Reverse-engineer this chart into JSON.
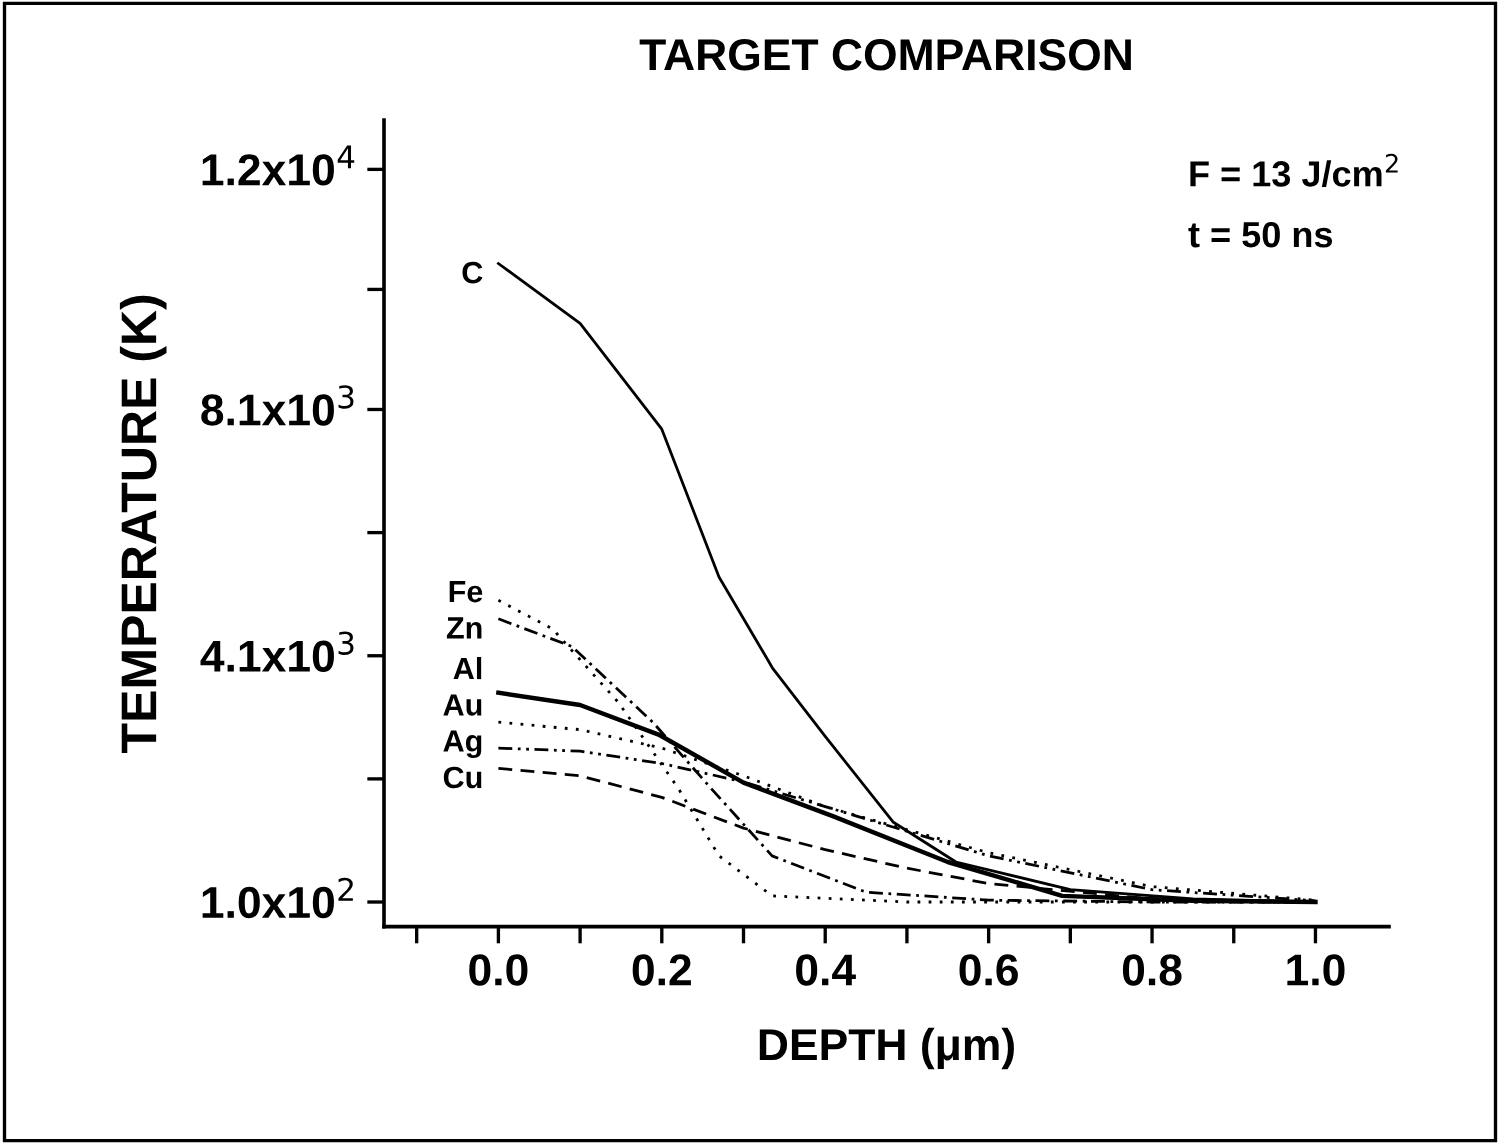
{
  "chart_data": {
    "type": "line",
    "title": "TARGET COMPARISON",
    "xlabel": "DEPTH (μm)",
    "ylabel": "TEMPERATURE (K)",
    "annotations": [
      "F = 13 J/cm$^{2}$",
      "t = 50 ns"
    ],
    "xlim": [
      -0.14,
      1.09
    ],
    "ylim": [
      -300,
      12800
    ],
    "xticks": [
      {
        "value": -0.1,
        "label": null
      },
      "0.0",
      {
        "value": 0.1,
        "label": null
      },
      0.2,
      {
        "value": 0.3,
        "label": null
      },
      0.4,
      {
        "value": 0.5,
        "label": null
      },
      0.6,
      {
        "value": 0.7,
        "label": null
      },
      0.8,
      {
        "value": 0.9,
        "label": null
      },
      {
        "value": 1.0,
        "label": "1.0"
      }
    ],
    "yticks": [
      {
        "value": 100,
        "label": "1.0x10$^{2}$"
      },
      {
        "value": 2100,
        "label": null
      },
      {
        "value": 4100,
        "label": "4.1x10$^{3}$"
      },
      {
        "value": 6100,
        "label": null
      },
      {
        "value": 8100,
        "label": "8.1x10$^{3}$"
      },
      {
        "value": 10050,
        "label": null
      },
      {
        "value": 12000,
        "label": "1.2x10$^{4}$"
      }
    ],
    "grid": false,
    "legend": false,
    "marker": "none",
    "series": [
      {
        "name": "C",
        "color": "#000000",
        "line_style": "solid",
        "x": [
          0,
          0.1,
          0.2,
          0.27,
          0.336,
          0.4,
          0.483,
          0.56,
          0.7,
          0.85,
          1.0
        ],
        "values": [
          10470,
          9500,
          7780,
          5380,
          3890,
          2790,
          1400,
          750,
          300,
          150,
          100
        ]
      },
      {
        "name": "Fe",
        "color": "#000000",
        "line_style": "dotted",
        "x": [
          0,
          0.066,
          0.147,
          0.22,
          0.27,
          0.335,
          0.5,
          0.7,
          1.0
        ],
        "values": [
          5000,
          4540,
          3340,
          1950,
          850,
          200,
          100,
          100,
          100
        ]
      },
      {
        "name": "Zn",
        "color": "#000000",
        "line_style": "dashdot",
        "x": [
          0,
          0.09,
          0.189,
          0.26,
          0.335,
          0.45,
          0.6,
          0.8,
          1.0
        ],
        "values": [
          4700,
          4250,
          3020,
          1950,
          850,
          260,
          130,
          100,
          100
        ]
      },
      {
        "name": "Al",
        "color": "#000000",
        "line_style": "solid",
        "x": [
          0,
          0.1,
          0.196,
          0.3,
          0.41,
          0.55,
          0.69,
          0.85,
          1.0
        ],
        "values": [
          3500,
          3300,
          2820,
          2040,
          1490,
          750,
          200,
          120,
          100
        ]
      },
      {
        "name": "Au",
        "color": "#000000",
        "line_style": "dotted",
        "x": [
          0,
          0.1,
          0.2,
          0.3,
          0.4,
          0.6,
          0.8,
          1.0
        ],
        "values": [
          3020,
          2900,
          2600,
          2150,
          1650,
          900,
          350,
          130
        ]
      },
      {
        "name": "Ag",
        "color": "#000000",
        "line_style": "dashdotdot",
        "x": [
          0,
          0.1,
          0.2,
          0.3,
          0.4,
          0.6,
          0.8,
          1.0
        ],
        "values": [
          2600,
          2550,
          2350,
          2050,
          1650,
          850,
          300,
          120
        ]
      },
      {
        "name": "Cu",
        "color": "#000000",
        "line_style": "dashed",
        "x": [
          0,
          0.1,
          0.2,
          0.3,
          0.4,
          0.5,
          0.6,
          0.8,
          1.0
        ],
        "values": [
          2270,
          2150,
          1800,
          1300,
          950,
          650,
          400,
          150,
          100
        ]
      }
    ]
  }
}
